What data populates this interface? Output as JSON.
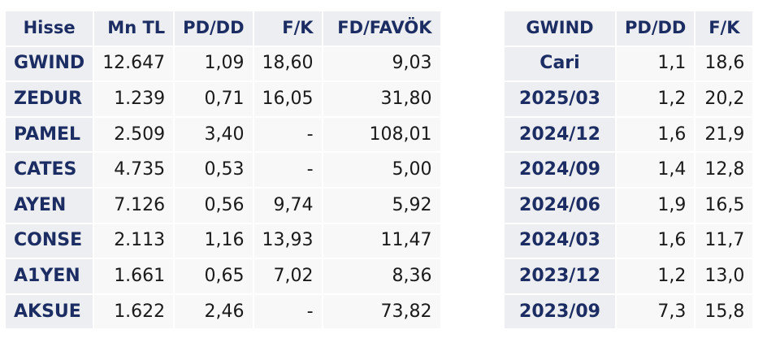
{
  "left_table": {
    "headers": [
      "Hisse",
      "Mn TL",
      "PD/DD",
      "F/K",
      "FD/FAVÖK"
    ],
    "rows": [
      {
        "name": "GWIND",
        "mn_tl": "12.647",
        "pd_dd": "1,09",
        "fk": "18,60",
        "fd_favok": "9,03"
      },
      {
        "name": "ZEDUR",
        "mn_tl": "1.239",
        "pd_dd": "0,71",
        "fk": "16,05",
        "fd_favok": "31,80"
      },
      {
        "name": "PAMEL",
        "mn_tl": "2.509",
        "pd_dd": "3,40",
        "fk": "-",
        "fd_favok": "108,01"
      },
      {
        "name": "CATES",
        "mn_tl": "4.735",
        "pd_dd": "0,53",
        "fk": "-",
        "fd_favok": "5,00"
      },
      {
        "name": "AYEN",
        "mn_tl": "7.126",
        "pd_dd": "0,56",
        "fk": "9,74",
        "fd_favok": "5,92"
      },
      {
        "name": "CONSE",
        "mn_tl": "2.113",
        "pd_dd": "1,16",
        "fk": "13,93",
        "fd_favok": "11,47"
      },
      {
        "name": "A1YEN",
        "mn_tl": "1.661",
        "pd_dd": "0,65",
        "fk": "7,02",
        "fd_favok": "8,36"
      },
      {
        "name": "AKSUE",
        "mn_tl": "1.622",
        "pd_dd": "2,46",
        "fk": "-",
        "fd_favok": "73,82"
      }
    ]
  },
  "right_table": {
    "headers": [
      "GWIND",
      "PD/DD",
      "F/K"
    ],
    "rows": [
      {
        "period": "Cari",
        "pd_dd": "1,1",
        "fk": "18,6"
      },
      {
        "period": "2025/03",
        "pd_dd": "1,2",
        "fk": "20,2"
      },
      {
        "period": "2024/12",
        "pd_dd": "1,6",
        "fk": "21,9"
      },
      {
        "period": "2024/09",
        "pd_dd": "1,4",
        "fk": "12,8"
      },
      {
        "period": "2024/06",
        "pd_dd": "1,9",
        "fk": "16,5"
      },
      {
        "period": "2024/03",
        "pd_dd": "1,6",
        "fk": "11,7"
      },
      {
        "period": "2023/12",
        "pd_dd": "1,2",
        "fk": "13,0"
      },
      {
        "period": "2023/09",
        "pd_dd": "7,3",
        "fk": "15,8"
      }
    ]
  }
}
